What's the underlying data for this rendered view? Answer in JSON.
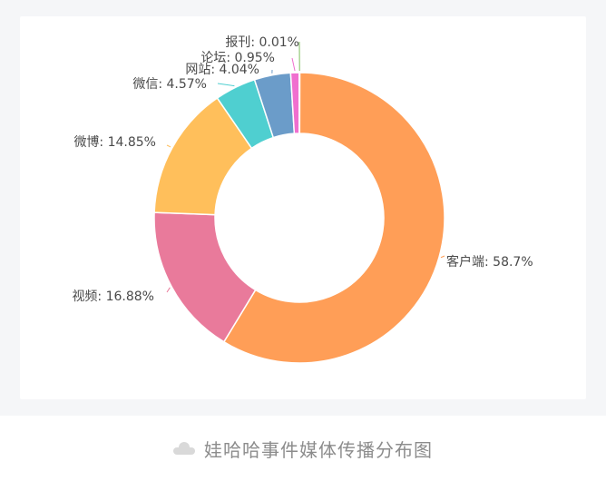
{
  "caption": {
    "icon": "cloud-icon",
    "text": "娃哈哈事件媒体传播分布图"
  },
  "chart_data": {
    "type": "pie",
    "variant": "donut",
    "title": "",
    "legend": "none",
    "slices": [
      {
        "name": "客户端",
        "value": 58.7,
        "label": "客户端: 58.7%",
        "color": "#ff9e57"
      },
      {
        "name": "视频",
        "value": 16.88,
        "label": "视频: 16.88%",
        "color": "#e97a9b"
      },
      {
        "name": "微博",
        "value": 14.85,
        "label": "微博: 14.85%",
        "color": "#ffbf5b"
      },
      {
        "name": "微信",
        "value": 4.57,
        "label": "微信: 4.57%",
        "color": "#4fcfd0"
      },
      {
        "name": "网站",
        "value": 4.04,
        "label": "网站: 4.04%",
        "color": "#6b9cc9"
      },
      {
        "name": "论坛",
        "value": 0.95,
        "label": "论坛: 0.95%",
        "color": "#f06fcf"
      },
      {
        "name": "报刊",
        "value": 0.01,
        "label": "报刊: 0.01%",
        "color": "#7fbf5f"
      }
    ]
  }
}
